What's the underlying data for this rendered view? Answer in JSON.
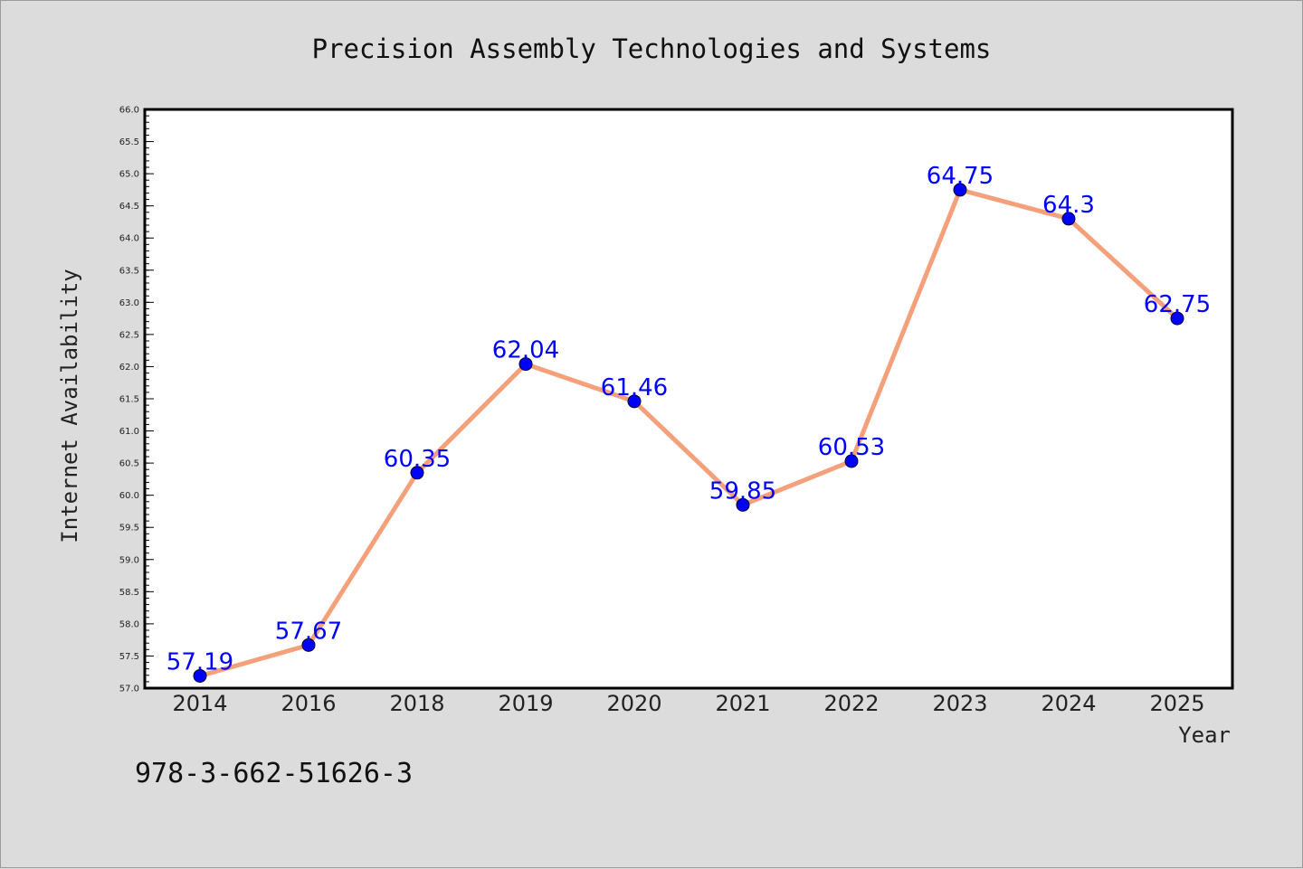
{
  "chart_data": {
    "type": "line",
    "title": "Precision Assembly Technologies and Systems",
    "xlabel": "Year",
    "ylabel": "Internet Availability",
    "categories": [
      "2014",
      "2016",
      "2018",
      "2019",
      "2020",
      "2021",
      "2022",
      "2023",
      "2024",
      "2025"
    ],
    "values": [
      57.19,
      57.67,
      60.35,
      62.04,
      61.46,
      59.85,
      60.53,
      64.75,
      64.3,
      62.75
    ],
    "data_labels": [
      "57.19",
      "57.67",
      "60.35",
      "62.04",
      "61.46",
      "59.85",
      "60.53",
      "64.75",
      "64.3",
      "62.75"
    ],
    "ylim": [
      57.0,
      66.0
    ],
    "yticks": [
      "57.0",
      "57.5",
      "58.0",
      "58.5",
      "59.0",
      "59.5",
      "60.0",
      "60.5",
      "61.0",
      "61.5",
      "62.0",
      "62.5",
      "63.0",
      "63.5",
      "64.0",
      "64.5",
      "65.0",
      "65.5",
      "66.0"
    ],
    "grid": false,
    "line_color": "#f4a07a",
    "marker_color": "#0000ff",
    "label_color": "#0000ff"
  },
  "footnote": "978-3-662-51626-3"
}
